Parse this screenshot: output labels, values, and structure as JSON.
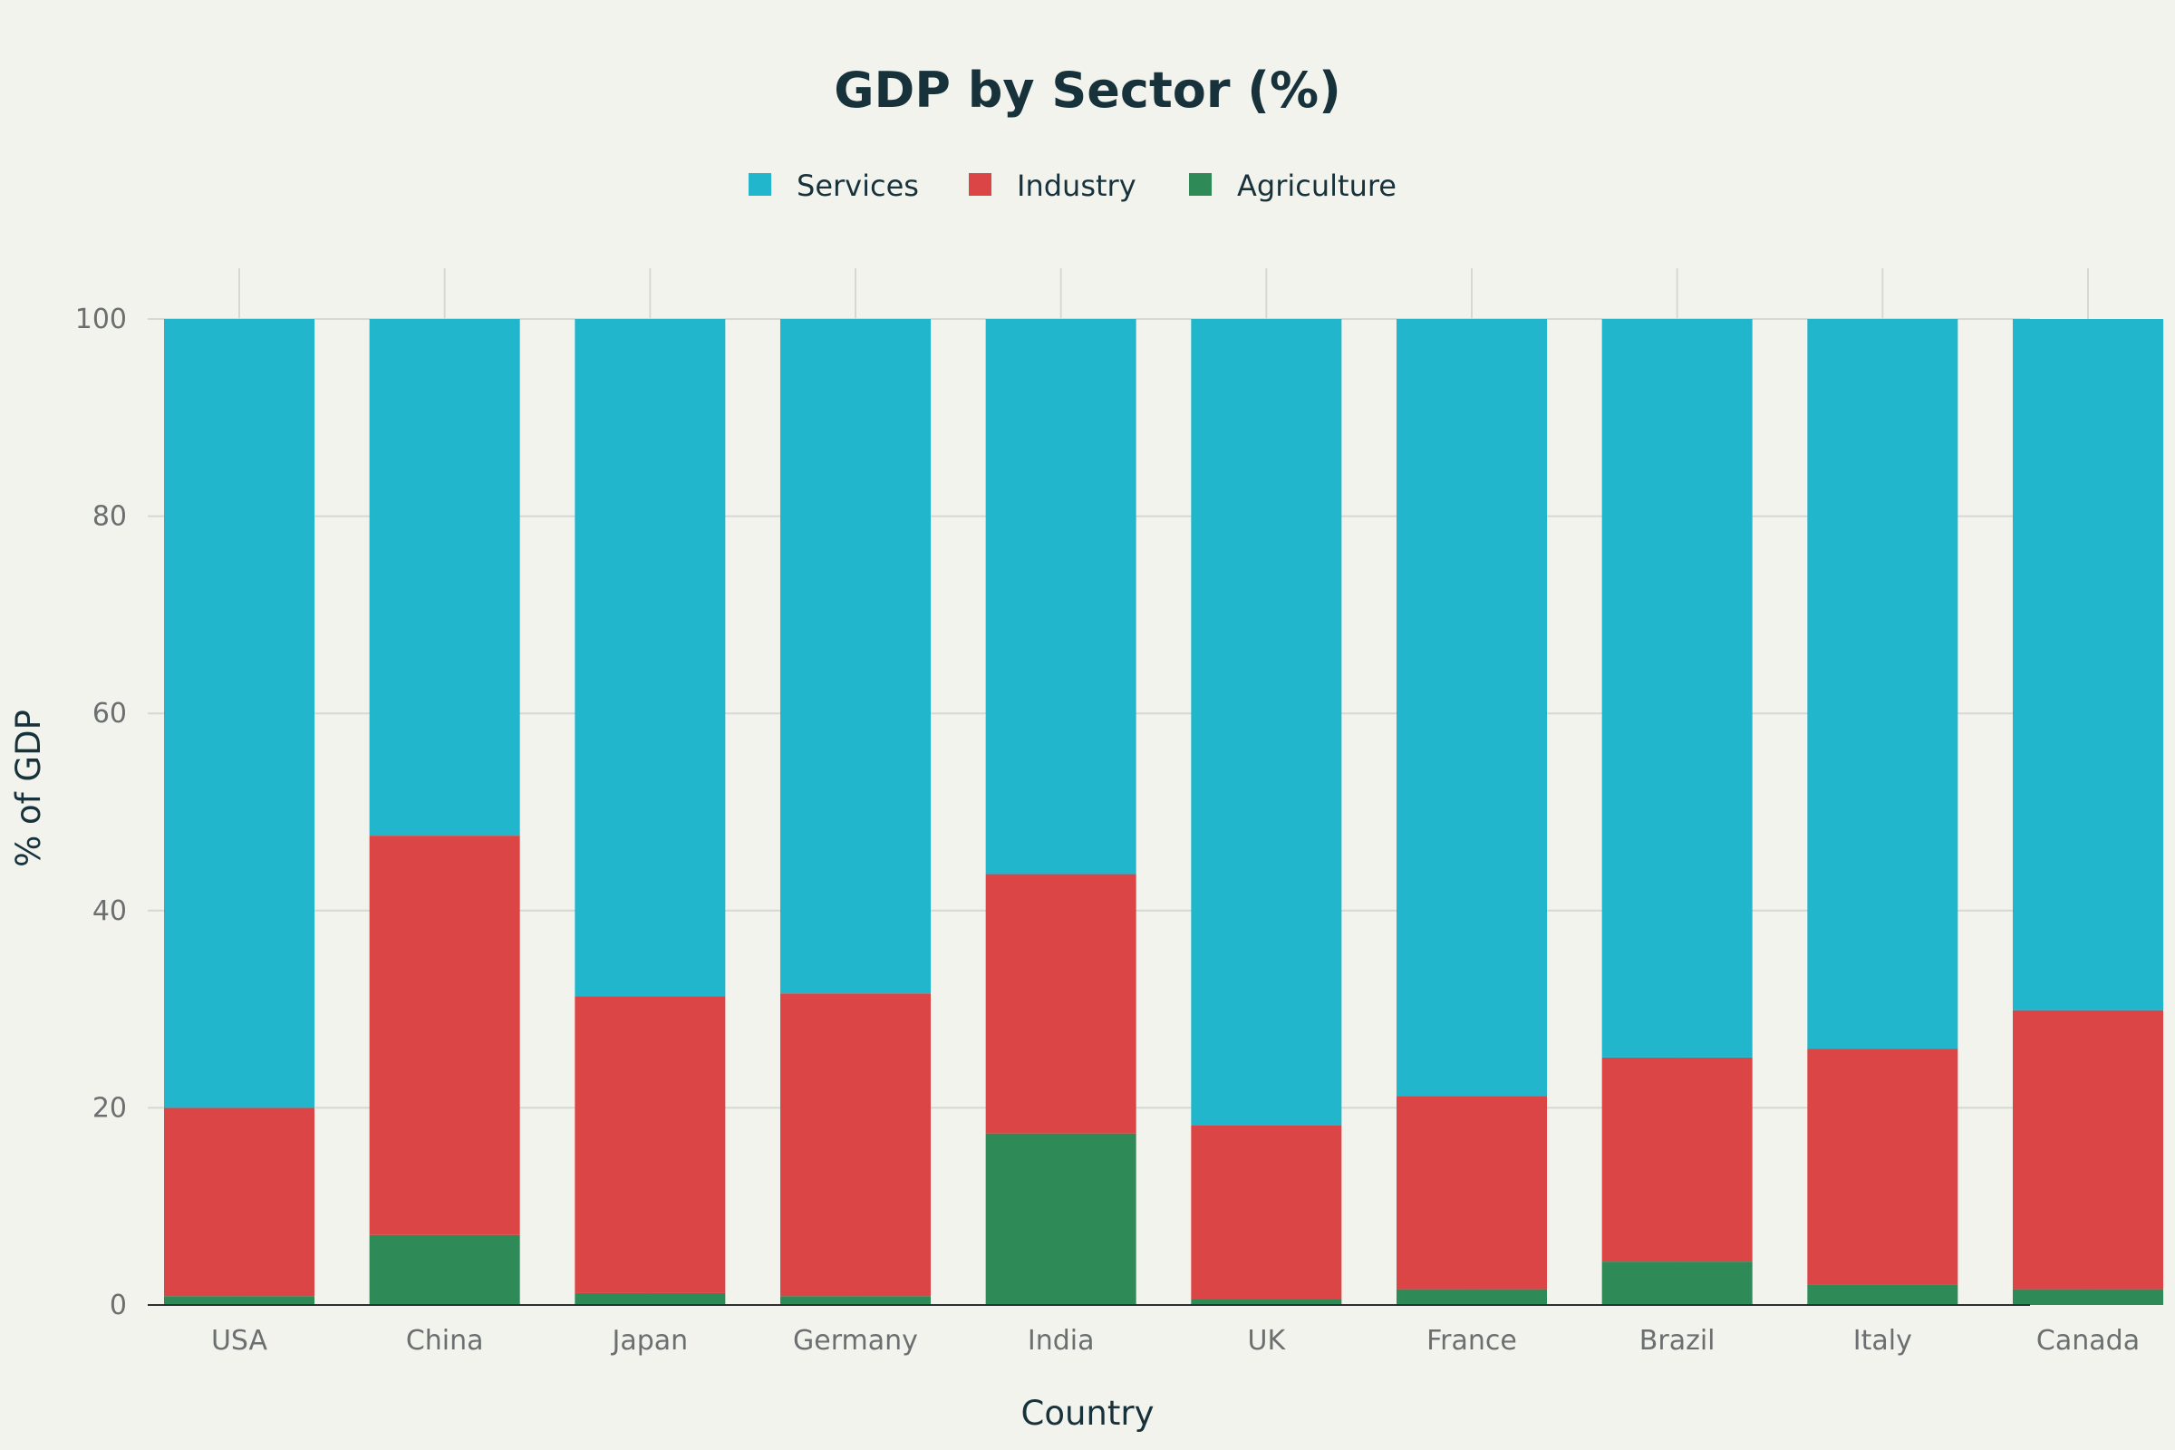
{
  "chart_data": {
    "type": "bar",
    "stacked": true,
    "title": "GDP by Sector (%)",
    "xlabel": "Country",
    "ylabel": "% of GDP",
    "ylim": [
      0,
      100
    ],
    "yticks": [
      0,
      20,
      40,
      60,
      80,
      100
    ],
    "grid": true,
    "legend_position": "top-center",
    "categories": [
      "USA",
      "China",
      "Japan",
      "Germany",
      "India",
      "UK",
      "France",
      "Brazil",
      "Italy",
      "Canada"
    ],
    "series": [
      {
        "name": "Agriculture",
        "color": "#2e8b57",
        "values": [
          0.9,
          7.1,
          1.2,
          0.9,
          17.4,
          0.6,
          1.6,
          4.4,
          2.1,
          1.6
        ]
      },
      {
        "name": "Industry",
        "color": "#db4545",
        "values": [
          19.1,
          40.5,
          30.1,
          30.7,
          26.3,
          17.6,
          19.6,
          20.7,
          23.9,
          28.3
        ]
      },
      {
        "name": "Services",
        "color": "#21b6cc",
        "values": [
          80.0,
          52.4,
          68.7,
          68.4,
          56.3,
          81.8,
          78.8,
          74.9,
          74.0,
          70.1
        ]
      }
    ],
    "legend_order": [
      "Services",
      "Industry",
      "Agriculture"
    ]
  }
}
